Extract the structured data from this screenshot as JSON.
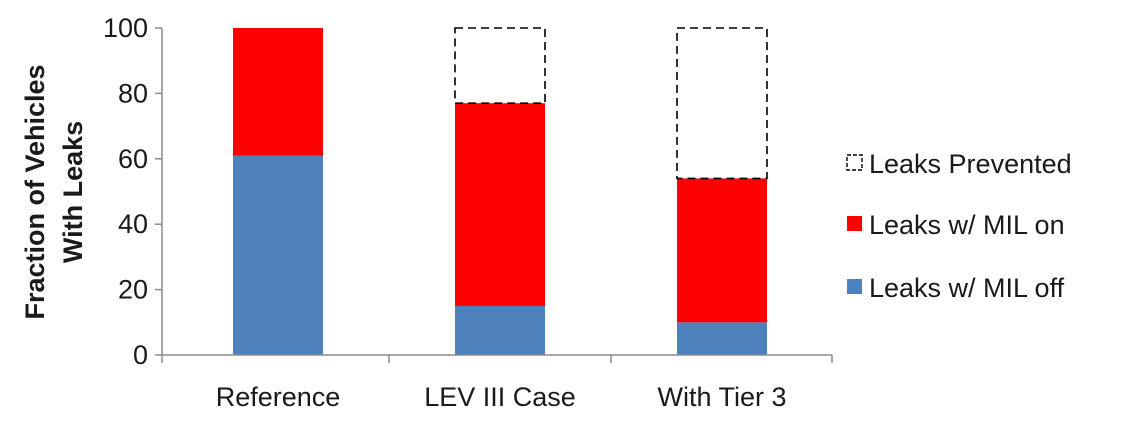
{
  "chart_data": {
    "type": "bar",
    "stacked": true,
    "categories": [
      "Reference",
      "LEV III Case",
      "With Tier 3"
    ],
    "series": [
      {
        "name": "Leaks w/ MIL off",
        "values": [
          61,
          15,
          10
        ],
        "color": "#4f81bd",
        "style": "solid"
      },
      {
        "name": "Leaks w/ MIL on",
        "values": [
          39,
          62,
          44
        ],
        "color": "#ff0000",
        "style": "solid"
      },
      {
        "name": "Leaks Prevented",
        "values": [
          0,
          23,
          46
        ],
        "color": "#000000",
        "style": "dashed-outline"
      }
    ],
    "ylabel": [
      "Fraction of Vehicles",
      "With Leaks"
    ],
    "yticks": [
      "0",
      "20",
      "40",
      "60",
      "80",
      "100"
    ],
    "ylim": [
      0,
      100
    ],
    "grid": false,
    "legend_position": "right"
  }
}
